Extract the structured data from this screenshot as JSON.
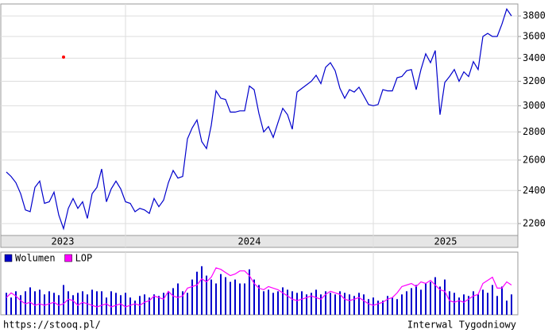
{
  "chart_data": {
    "type": "line",
    "log_scale": true,
    "grid": true,
    "ylim": [
      2132,
      3922
    ],
    "yticks": [
      2200,
      2400,
      2600,
      2800,
      3000,
      3200,
      3400,
      3600,
      3800
    ],
    "xticks": [
      25,
      77
    ],
    "xlabels": [
      "2023",
      "2024",
      "2025"
    ],
    "series": [
      {
        "name": "price",
        "color": "#0000cc",
        "values": [
          2520,
          2490,
          2450,
          2380,
          2280,
          2270,
          2420,
          2460,
          2320,
          2330,
          2390,
          2250,
          2170,
          2290,
          2350,
          2290,
          2330,
          2230,
          2380,
          2420,
          2540,
          2330,
          2410,
          2460,
          2410,
          2330,
          2320,
          2270,
          2290,
          2280,
          2260,
          2350,
          2300,
          2340,
          2450,
          2530,
          2480,
          2490,
          2750,
          2830,
          2890,
          2730,
          2680,
          2850,
          3120,
          3060,
          3050,
          2950,
          2950,
          2960,
          2960,
          3160,
          3130,
          2940,
          2800,
          2840,
          2760,
          2870,
          2980,
          2930,
          2820,
          3110,
          3140,
          3170,
          3200,
          3250,
          3180,
          3320,
          3360,
          3290,
          3140,
          3060,
          3130,
          3110,
          3150,
          3080,
          3010,
          3000,
          3010,
          3130,
          3120,
          3120,
          3230,
          3240,
          3290,
          3300,
          3130,
          3300,
          3440,
          3360,
          3470,
          2930,
          3190,
          3240,
          3300,
          3200,
          3280,
          3240,
          3370,
          3300,
          3600,
          3630,
          3600,
          3600,
          3720,
          3870,
          3800
        ]
      }
    ],
    "marker": {
      "index": 12,
      "value": 3410,
      "color": "#ff0000"
    },
    "lower": {
      "ylim": [
        0,
        80
      ],
      "series": [
        {
          "name": "Wolumen",
          "color": "#0000cc",
          "values": [
            28,
            22,
            30,
            25,
            30,
            35,
            30,
            32,
            26,
            30,
            28,
            25,
            38,
            30,
            25,
            28,
            30,
            26,
            32,
            30,
            30,
            22,
            30,
            28,
            25,
            28,
            22,
            18,
            24,
            26,
            22,
            26,
            24,
            28,
            30,
            34,
            40,
            30,
            28,
            45,
            55,
            62,
            50,
            45,
            40,
            52,
            48,
            42,
            45,
            40,
            40,
            58,
            45,
            38,
            30,
            32,
            28,
            30,
            35,
            32,
            30,
            28,
            30,
            26,
            28,
            32,
            26,
            30,
            28,
            26,
            30,
            28,
            26,
            24,
            28,
            26,
            20,
            22,
            18,
            18,
            24,
            22,
            20,
            26,
            30,
            34,
            38,
            32,
            40,
            42,
            48,
            36,
            45,
            30,
            28,
            22,
            26,
            24,
            30,
            26,
            32,
            28,
            38,
            24,
            36,
            18,
            26
          ]
        },
        {
          "name": "LOP",
          "color": "#ff00ff",
          "values": [
            22,
            28,
            24,
            18,
            14,
            16,
            12,
            14,
            12,
            14,
            16,
            12,
            14,
            20,
            18,
            12,
            16,
            14,
            12,
            10,
            12,
            14,
            10,
            12,
            14,
            10,
            12,
            14,
            12,
            16,
            18,
            24,
            22,
            20,
            30,
            24,
            22,
            24,
            34,
            36,
            38,
            46,
            42,
            48,
            60,
            58,
            54,
            50,
            52,
            56,
            56,
            50,
            40,
            34,
            32,
            36,
            34,
            32,
            28,
            24,
            20,
            18,
            20,
            22,
            24,
            22,
            20,
            26,
            30,
            28,
            26,
            20,
            18,
            20,
            22,
            18,
            14,
            12,
            14,
            16,
            20,
            22,
            28,
            36,
            38,
            40,
            36,
            42,
            40,
            44,
            38,
            32,
            30,
            18,
            16,
            18,
            16,
            20,
            24,
            26,
            40,
            44,
            48,
            34,
            34,
            42,
            38
          ]
        }
      ]
    },
    "footer_left": "https://stooq.pl/",
    "footer_right": "Interwal Tygodniowy"
  }
}
